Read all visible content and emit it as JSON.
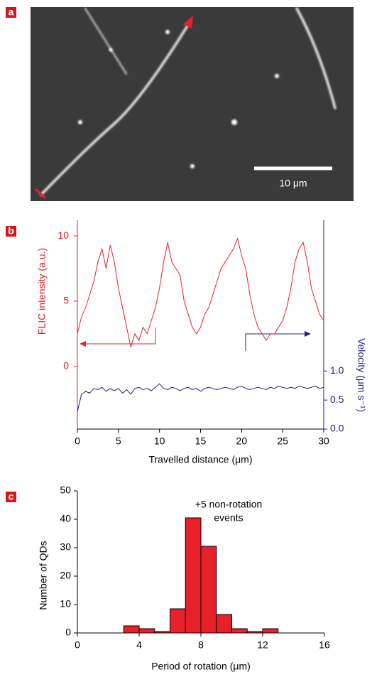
{
  "chart_data": [
    {
      "type": "image",
      "label": "a",
      "scale_bar": "10 μm"
    },
    {
      "type": "line",
      "label": "b",
      "xlabel": "Travelled distance (μm)",
      "ylabel": "FLIC intensity (a.u.)",
      "y2label": "Velocity (μm s⁻¹)",
      "xlim": [
        0,
        30
      ],
      "xticks": [
        0,
        5,
        10,
        15,
        20,
        25,
        30
      ],
      "ylim": [
        -4.8,
        11.2
      ],
      "yticks": [
        0,
        5,
        10
      ],
      "y2lim": [
        0,
        3.6
      ],
      "y2ticks": [
        {
          "value": 0,
          "label": "0.0"
        },
        0.5,
        {
          "value": 1,
          "label": "1.0"
        }
      ],
      "x": [
        0,
        0.5,
        1,
        1.5,
        2,
        2.5,
        3,
        3.5,
        4,
        4.5,
        5,
        5.5,
        6,
        6.5,
        7,
        7.5,
        8,
        8.5,
        9,
        9.5,
        10,
        10.5,
        11,
        11.5,
        12,
        12.5,
        13,
        13.5,
        14,
        14.5,
        15,
        15.5,
        16,
        16.5,
        17,
        17.5,
        18,
        18.5,
        19,
        19.5,
        20,
        20.5,
        21,
        21.5,
        22,
        22.5,
        23,
        23.5,
        24,
        24.5,
        25,
        25.5,
        26,
        26.5,
        27,
        27.5,
        28,
        28.5,
        29,
        29.5,
        30
      ],
      "series": [
        {
          "color": "#e8202a",
          "values": [
            2.5,
            3.8,
            4.5,
            5.5,
            6.5,
            8,
            9,
            7.5,
            9.3,
            8,
            6,
            4.5,
            3,
            1.5,
            2.5,
            2,
            3,
            2.5,
            3.5,
            4.5,
            6,
            8,
            9.5,
            8,
            7.5,
            7,
            5,
            4,
            3,
            2.5,
            3,
            4,
            4.5,
            5.5,
            6.5,
            7.5,
            8,
            8.5,
            9,
            9.8,
            8.5,
            7.5,
            5.5,
            4,
            3,
            2.5,
            2,
            2.5,
            2.5,
            3,
            3.5,
            4.5,
            6,
            8,
            9,
            9.5,
            8,
            6,
            5,
            4,
            3.5
          ]
        },
        {
          "color": "#1f2080",
          "axis": "y2",
          "values": [
            0.3,
            0.6,
            0.65,
            0.62,
            0.7,
            0.68,
            0.72,
            0.65,
            0.7,
            0.66,
            0.7,
            0.62,
            0.68,
            0.6,
            0.7,
            0.72,
            0.68,
            0.7,
            0.66,
            0.72,
            0.78,
            0.7,
            0.68,
            0.72,
            0.7,
            0.66,
            0.7,
            0.72,
            0.68,
            0.7,
            0.65,
            0.7,
            0.72,
            0.7,
            0.68,
            0.7,
            0.72,
            0.7,
            0.68,
            0.72,
            0.74,
            0.7,
            0.68,
            0.7,
            0.72,
            0.7,
            0.68,
            0.72,
            0.7,
            0.74,
            0.72,
            0.7,
            0.72,
            0.7,
            0.74,
            0.72,
            0.7,
            0.72,
            0.74,
            0.7,
            0.72
          ]
        }
      ]
    },
    {
      "type": "histogram",
      "label": "c",
      "color": "#e8202a",
      "xlabel": "Period of rotation (μm)",
      "ylabel": "Number of QDs",
      "annotation": [
        "+5 non-rotation",
        "events"
      ],
      "xlim": [
        0,
        16
      ],
      "xticks": [
        0,
        4,
        8,
        12,
        16
      ],
      "ylim": [
        0,
        50
      ],
      "yticks": [
        0,
        10,
        20,
        30,
        40,
        50
      ],
      "bins": [
        3,
        4,
        5,
        6,
        7,
        8,
        9,
        10,
        11,
        12,
        13
      ],
      "counts": [
        2.5,
        1.5,
        0.5,
        8.5,
        40.5,
        30.5,
        6.5,
        1.5,
        0.5,
        1.5
      ]
    }
  ]
}
